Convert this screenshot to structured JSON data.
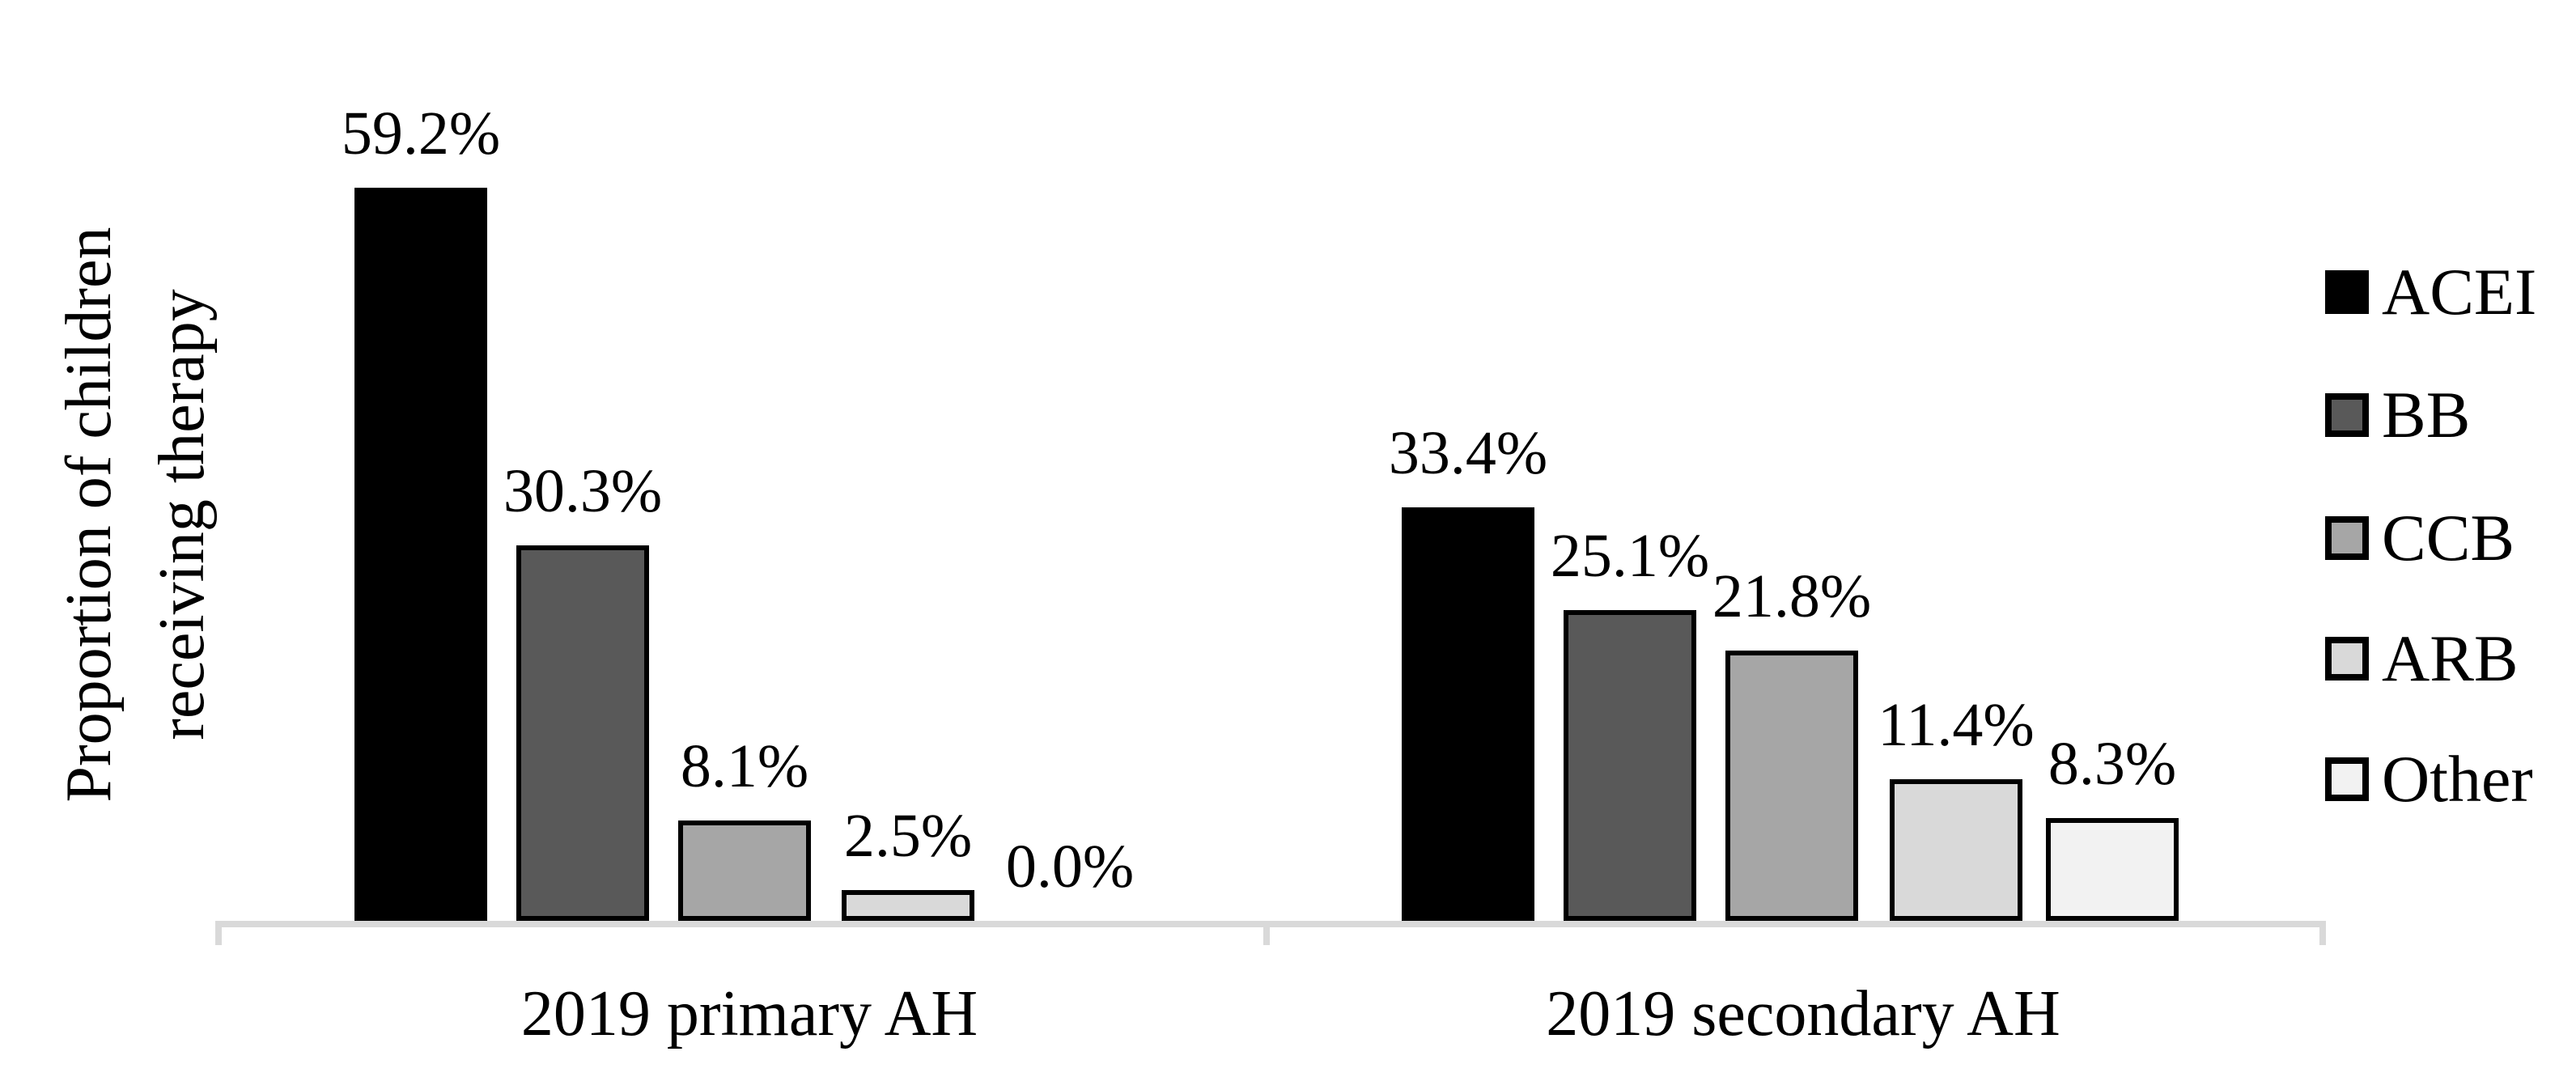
{
  "chart_data": {
    "type": "bar",
    "title": "",
    "ylabel": "Proportion of children receiving therapy",
    "ylabel_lines": [
      "Proportion of children",
      "receiving therapy"
    ],
    "xlabel": "",
    "categories": [
      "2019 primary AH",
      "2019 secondary AH"
    ],
    "series": [
      {
        "name": "ACEI",
        "color": "#000000",
        "values": [
          59.2,
          33.4
        ],
        "labels": [
          "59.2%",
          "33.4%"
        ]
      },
      {
        "name": "BB",
        "color": "#595959",
        "values": [
          30.3,
          25.1
        ],
        "labels": [
          "30.3%",
          "25.1%"
        ]
      },
      {
        "name": "CCB",
        "color": "#a6a6a6",
        "values": [
          8.1,
          21.8
        ],
        "labels": [
          "8.1%",
          "21.8%"
        ]
      },
      {
        "name": "ARB",
        "color": "#d9d9d9",
        "values": [
          2.5,
          11.4
        ],
        "labels": [
          "2.5%",
          "11.4%"
        ]
      },
      {
        "name": "Other",
        "color": "#f2f2f2",
        "values": [
          0.0,
          8.3
        ],
        "labels": [
          "0.0%",
          "8.3%"
        ]
      }
    ],
    "value_format": "percent_one_decimal",
    "data_labels_shown": true,
    "bar_border_color": "#000000",
    "axis_color": "#d9d9d9",
    "text_color": "#000000",
    "background_color": "#ffffff",
    "grid": false,
    "y_axis_ticks_shown": false,
    "legend_position": "right",
    "ylim": [
      0,
      65
    ]
  }
}
